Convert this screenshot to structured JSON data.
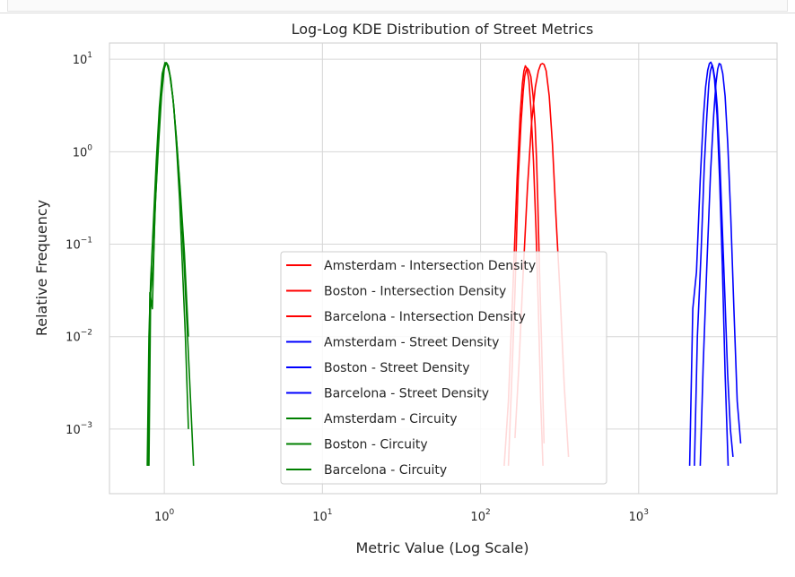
{
  "chart_data": {
    "type": "line",
    "title": "Log-Log KDE Distribution of Street Metrics",
    "xlabel": "Metric Value (Log Scale)",
    "ylabel": "Relative Frequency",
    "xscale": "log",
    "yscale": "log",
    "xlim": [
      0.45,
      7.5
    ],
    "ylim": [
      0.0002,
      15
    ],
    "grid": true,
    "legend_position": "lower-center",
    "x_ticks": [
      {
        "base": "10",
        "exp": "0",
        "value": 1
      },
      {
        "base": "10",
        "exp": "1",
        "value": 10
      },
      {
        "base": "10",
        "exp": "2",
        "value": 100
      },
      {
        "base": "10",
        "exp": "3",
        "value": 1000
      }
    ],
    "y_ticks": [
      {
        "base": "10",
        "exp": "1",
        "value": 10
      },
      {
        "base": "10",
        "exp": "0",
        "value": 1
      },
      {
        "base": "10",
        "exp": "−1",
        "value": 0.1
      },
      {
        "base": "10",
        "exp": "−2",
        "value": 0.01
      },
      {
        "base": "10",
        "exp": "−3",
        "value": 0.001
      }
    ],
    "series": [
      {
        "name": "Amsterdam - Intersection Density",
        "color": "#ff0000",
        "x": [
          150,
          157,
          165,
          173,
          180,
          186,
          190,
          194,
          198,
          202,
          208,
          215,
          221,
          226,
          230,
          236,
          244,
          252
        ],
        "y": [
          0.0004,
          0.003,
          0.03,
          0.5,
          2.0,
          4.5,
          6.5,
          7.6,
          8.0,
          7.6,
          6.5,
          4.0,
          2.0,
          0.8,
          0.3,
          0.05,
          0.007,
          0.0007
        ]
      },
      {
        "name": "Boston - Intersection Density",
        "color": "#ff0000",
        "x": [
          141,
          150,
          160,
          170,
          178,
          184,
          188,
          192,
          196,
          202,
          208,
          216,
          224,
          232,
          240,
          248
        ],
        "y": [
          0.0004,
          0.002,
          0.03,
          0.5,
          2.5,
          5.5,
          7.5,
          8.5,
          8.0,
          6.0,
          3.0,
          0.8,
          0.15,
          0.02,
          0.002,
          0.0004
        ]
      },
      {
        "name": "Barcelona - Intersection Density",
        "color": "#ff0000",
        "x": [
          165,
          175,
          186,
          198,
          210,
          222,
          232,
          240,
          246,
          252,
          260,
          272,
          285,
          300,
          318,
          338,
          360
        ],
        "y": [
          0.0008,
          0.005,
          0.05,
          0.4,
          2.0,
          5.0,
          7.5,
          8.8,
          9.0,
          8.8,
          7.5,
          4.0,
          1.2,
          0.2,
          0.03,
          0.003,
          0.0005
        ]
      },
      {
        "name": "Amsterdam - Street Density",
        "color": "#0000ff",
        "x": [
          2250,
          2350,
          2480,
          2600,
          2700,
          2780,
          2840,
          2900,
          2960,
          3040,
          3140,
          3260,
          3380,
          3500,
          3650,
          3800,
          3950
        ],
        "y": [
          0.0004,
          0.01,
          0.08,
          0.7,
          2.5,
          5.5,
          7.5,
          8.5,
          8.0,
          6.0,
          3.0,
          0.8,
          0.15,
          0.03,
          0.004,
          0.001,
          0.0005
        ]
      },
      {
        "name": "Boston - Street Density",
        "color": "#0000ff",
        "x": [
          2100,
          2200,
          2320,
          2450,
          2560,
          2650,
          2730,
          2800,
          2860,
          2930,
          3020,
          3130,
          3250,
          3380,
          3520,
          3680
        ],
        "y": [
          0.0004,
          0.02,
          0.05,
          0.5,
          2.2,
          5.0,
          7.6,
          9.0,
          9.3,
          8.5,
          6.0,
          2.5,
          0.5,
          0.06,
          0.004,
          0.0004
        ]
      },
      {
        "name": "Barcelona - Street Density",
        "color": "#0000ff",
        "x": [
          2450,
          2560,
          2700,
          2850,
          2980,
          3080,
          3160,
          3230,
          3300,
          3400,
          3520,
          3660,
          3820,
          4000,
          4200,
          4420
        ],
        "y": [
          0.0004,
          0.005,
          0.06,
          0.6,
          2.5,
          5.5,
          7.8,
          9.0,
          8.8,
          7.0,
          4.0,
          1.2,
          0.2,
          0.02,
          0.002,
          0.0007
        ]
      },
      {
        "name": "Amsterdam - Circuity",
        "color": "#008000",
        "x": [
          0.8,
          0.82,
          0.85,
          0.88,
          0.92,
          0.96,
          1.0,
          1.03,
          1.06,
          1.1,
          1.15,
          1.2,
          1.25,
          1.3,
          1.36,
          1.42
        ],
        "y": [
          0.0004,
          0.03,
          0.06,
          0.3,
          1.2,
          4.0,
          8.0,
          9.2,
          8.5,
          6.0,
          3.0,
          1.0,
          0.3,
          0.06,
          0.01,
          0.001
        ]
      },
      {
        "name": "Boston - Circuity",
        "color": "#008000",
        "x": [
          0.79,
          0.81,
          0.84,
          0.87,
          0.91,
          0.95,
          0.99,
          1.02,
          1.05,
          1.09,
          1.14,
          1.2,
          1.27,
          1.35,
          1.44,
          1.53
        ],
        "y": [
          0.0004,
          0.03,
          0.02,
          0.2,
          1.0,
          3.5,
          7.5,
          9.0,
          8.7,
          6.5,
          3.5,
          1.2,
          0.3,
          0.04,
          0.004,
          0.0004
        ]
      },
      {
        "name": "Barcelona - Circuity",
        "color": "#008000",
        "x": [
          0.78,
          0.8,
          0.82,
          0.85,
          0.89,
          0.93,
          0.97,
          1.01,
          1.04,
          1.08,
          1.13,
          1.19,
          1.26,
          1.34,
          1.42
        ],
        "y": [
          0.0004,
          0.01,
          0.04,
          0.15,
          0.8,
          3.0,
          7.0,
          9.2,
          9.0,
          7.0,
          4.0,
          1.5,
          0.4,
          0.08,
          0.01
        ]
      }
    ]
  }
}
